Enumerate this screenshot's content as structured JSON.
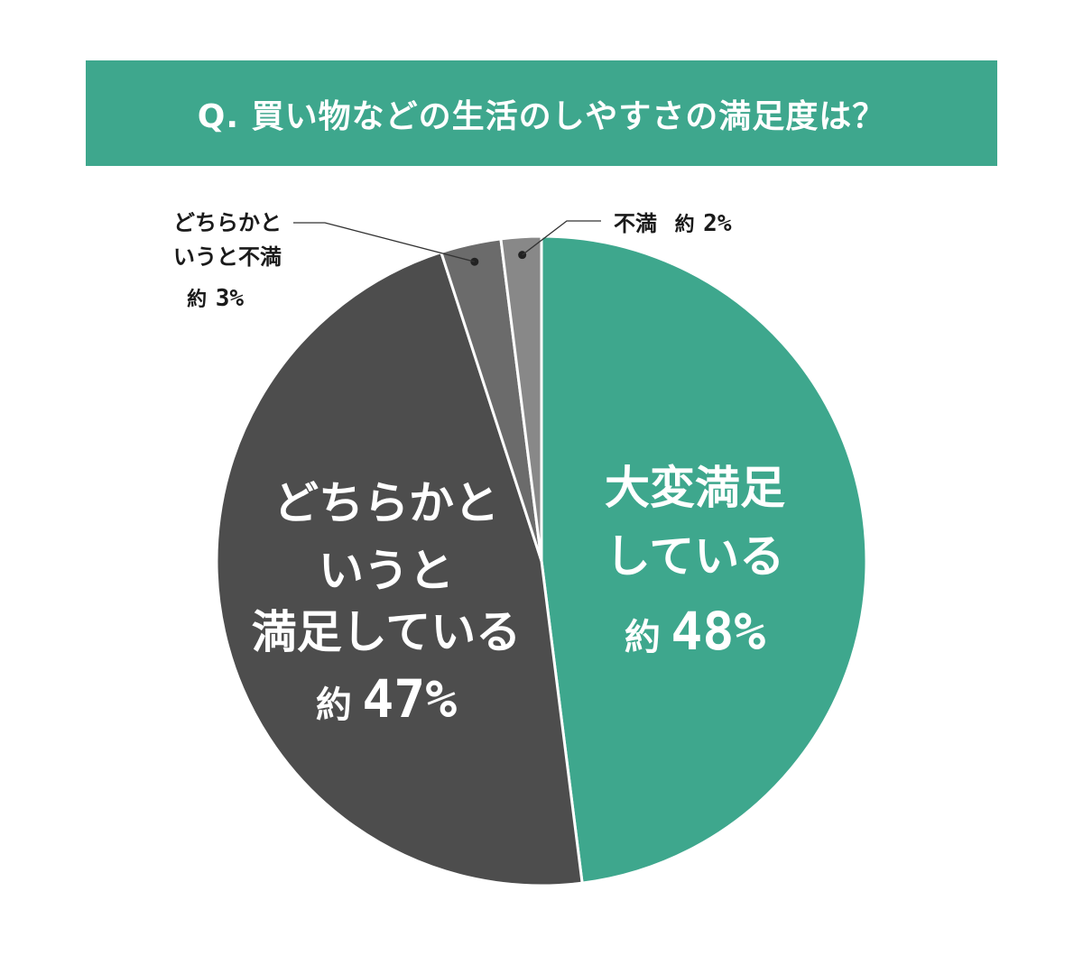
{
  "title": "Q. 買い物などの生活のしやすさの満足度は？",
  "colors": {
    "title_bg": "#3ea78d",
    "very_satisfied": "#3ea78d",
    "somewhat_satisfied": "#4d4d4d",
    "somewhat_dissatisfied": "#6b6b6b",
    "dissatisfied": "#888888",
    "separator": "#ffffff",
    "leader_line": "#333333"
  },
  "chart_data": {
    "type": "pie",
    "start": "12 o'clock, clockwise",
    "slices": [
      {
        "key": "very_satisfied",
        "label_lines": [
          "大変満足",
          "している"
        ],
        "prefix": "約",
        "percent_text": "48%",
        "value": 48
      },
      {
        "key": "somewhat_satisfied",
        "label_lines": [
          "どちらかと",
          "いうと",
          "満足している"
        ],
        "prefix": "約",
        "percent_text": "47%",
        "value": 47
      },
      {
        "key": "somewhat_dissatisfied",
        "label_lines": [
          "どちらかと",
          "いうと不満"
        ],
        "prefix": "約",
        "percent_text": "3%",
        "value": 3
      },
      {
        "key": "dissatisfied",
        "label_lines": [
          "不満"
        ],
        "prefix": "約",
        "percent_text": "2%",
        "value": 2
      }
    ]
  }
}
